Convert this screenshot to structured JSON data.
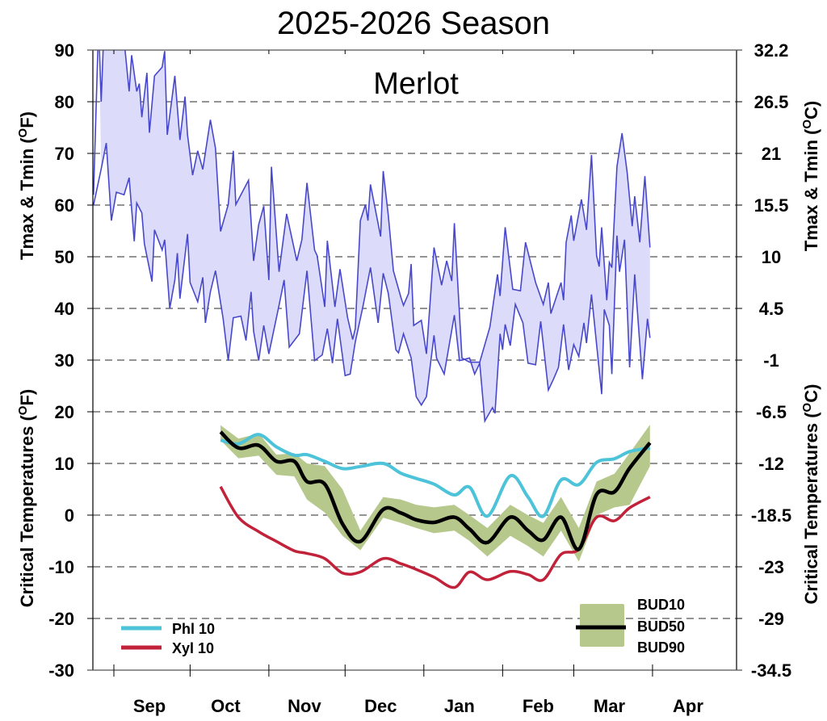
{
  "chart_data": {
    "type": "line",
    "title": "2025-2026 Season",
    "subtitle": "Merlot",
    "x_axis": {
      "type": "date",
      "range": [
        "2025-08-24",
        "2026-05-04"
      ],
      "tick_dates": [
        "2025-09-01",
        "2025-10-01",
        "2025-11-01",
        "2025-12-01",
        "2026-01-01",
        "2026-02-01",
        "2026-03-01",
        "2026-04-01"
      ],
      "labels": [
        {
          "text": "Sep",
          "date": "2025-09-15"
        },
        {
          "text": "Oct",
          "date": "2025-10-15"
        },
        {
          "text": "Nov",
          "date": "2025-11-15"
        },
        {
          "text": "Dec",
          "date": "2025-12-15"
        },
        {
          "text": "Jan",
          "date": "2026-01-15"
        },
        {
          "text": "Feb",
          "date": "2026-02-15"
        },
        {
          "text": "Mar",
          "date": "2026-03-15"
        },
        {
          "text": "Apr",
          "date": "2026-04-15"
        }
      ]
    },
    "y_axis_left": {
      "range": [
        -30,
        90
      ],
      "ticks": [
        90,
        80,
        70,
        60,
        50,
        40,
        30,
        20,
        10,
        0,
        -10,
        -20,
        -30
      ],
      "title_upper": {
        "prefix": "Tmax & Tmin (",
        "sup": "O",
        "suffix": "F)"
      },
      "title_lower": {
        "prefix": "Critical Temperatures (",
        "sup": "O",
        "suffix": "F)"
      }
    },
    "y_axis_right": {
      "ticks": [
        "32.2",
        "26.5",
        "21",
        "15.5",
        "10",
        "4.5",
        "-1",
        "-6.5",
        "-12",
        "-18.5",
        "-23",
        "-29",
        "-34.5"
      ],
      "title_upper": {
        "prefix": "Tmax & Tmin (",
        "sup": "O",
        "suffix": "C)"
      },
      "title_lower": {
        "prefix": "Critical Temperatures (",
        "sup": "O",
        "suffix": "C)"
      }
    },
    "grid": "horizontal dashed",
    "colors": {
      "temp_line": "#4848cc",
      "temp_fill": "#dcdcfa",
      "phl": "#4cc3d8",
      "xyl": "#c1223a",
      "bud_band": "#b6c88c",
      "bud50": "#000000",
      "grid": "#555555"
    },
    "temperature": {
      "tmax": [
        [
          "2025-08-24",
          62
        ],
        [
          "2025-08-26",
          95
        ],
        [
          "2025-08-27",
          80
        ],
        [
          "2025-08-28",
          93
        ],
        [
          "2025-09-02",
          95
        ],
        [
          "2025-09-05",
          92
        ],
        [
          "2025-09-07",
          82
        ],
        [
          "2025-09-08",
          89
        ],
        [
          "2025-09-10",
          82
        ],
        [
          "2025-09-11",
          83.5
        ],
        [
          "2025-09-12",
          77
        ],
        [
          "2025-09-14",
          85.6
        ],
        [
          "2025-09-15",
          74
        ],
        [
          "2025-09-17",
          85
        ],
        [
          "2025-09-20",
          86.7
        ],
        [
          "2025-09-21",
          89.8
        ],
        [
          "2025-09-22",
          73.6
        ],
        [
          "2025-09-25",
          85
        ],
        [
          "2025-09-27",
          72.6
        ],
        [
          "2025-09-29",
          81
        ],
        [
          "2025-09-30",
          73.6
        ],
        [
          "2025-10-02",
          65.8
        ],
        [
          "2025-10-04",
          70.5
        ],
        [
          "2025-10-06",
          66.9
        ],
        [
          "2025-10-09",
          76.5
        ],
        [
          "2025-10-11",
          71
        ],
        [
          "2025-10-13",
          54.9
        ],
        [
          "2025-10-16",
          60.1
        ],
        [
          "2025-10-18",
          70.5
        ],
        [
          "2025-10-19",
          60.1
        ],
        [
          "2025-10-21",
          62
        ],
        [
          "2025-10-24",
          64.8
        ],
        [
          "2025-10-26",
          49.2
        ],
        [
          "2025-10-28",
          56.2
        ],
        [
          "2025-10-30",
          59.8
        ],
        [
          "2025-11-01",
          45.5
        ],
        [
          "2025-11-02",
          67.4
        ],
        [
          "2025-11-05",
          47.1
        ],
        [
          "2025-11-08",
          58.3
        ],
        [
          "2025-11-12",
          49.2
        ],
        [
          "2025-11-14",
          53.3
        ],
        [
          "2025-11-16",
          64.3
        ],
        [
          "2025-11-19",
          51.3
        ],
        [
          "2025-11-20",
          50.2
        ],
        [
          "2025-11-23",
          40.3
        ],
        [
          "2025-11-24",
          53.1
        ],
        [
          "2025-11-27",
          40.3
        ],
        [
          "2025-11-29",
          47.6
        ],
        [
          "2025-12-02",
          38.2
        ],
        [
          "2025-12-04",
          34
        ],
        [
          "2025-12-05",
          36.1
        ],
        [
          "2025-12-07",
          57
        ],
        [
          "2025-12-09",
          60.1
        ],
        [
          "2025-12-10",
          57
        ],
        [
          "2025-12-11",
          64
        ],
        [
          "2025-12-15",
          53.9
        ],
        [
          "2025-12-16",
          66.6
        ],
        [
          "2025-12-18",
          58
        ],
        [
          "2025-12-20",
          47.3
        ],
        [
          "2025-12-23",
          42.1
        ],
        [
          "2025-12-24",
          40.6
        ],
        [
          "2025-12-26",
          42.9
        ],
        [
          "2025-12-27",
          48.6
        ],
        [
          "2025-12-28",
          36.7
        ],
        [
          "2025-12-31",
          37.7
        ],
        [
          "2026-01-02",
          31.2
        ],
        [
          "2026-01-05",
          51.8
        ],
        [
          "2026-01-08",
          44.5
        ],
        [
          "2026-01-10",
          49.2
        ],
        [
          "2026-01-12",
          45.3
        ],
        [
          "2026-01-13",
          56.5
        ],
        [
          "2026-01-16",
          30.4
        ],
        [
          "2026-01-19",
          29.6
        ],
        [
          "2026-01-23",
          29.6
        ],
        [
          "2026-01-27",
          36.4
        ],
        [
          "2026-01-30",
          46.6
        ],
        [
          "2026-01-31",
          42.4
        ],
        [
          "2026-02-02",
          55.7
        ],
        [
          "2026-02-05",
          43.7
        ],
        [
          "2026-02-08",
          43.4
        ],
        [
          "2026-02-10",
          52.8
        ],
        [
          "2026-02-14",
          45
        ],
        [
          "2026-02-17",
          40.8
        ],
        [
          "2026-02-19",
          45
        ],
        [
          "2026-02-20",
          39
        ],
        [
          "2026-02-24",
          45
        ],
        [
          "2026-02-25",
          41.6
        ],
        [
          "2026-02-26",
          52.8
        ],
        [
          "2026-02-28",
          58
        ],
        [
          "2026-03-01",
          53.1
        ],
        [
          "2026-03-04",
          61.1
        ],
        [
          "2026-03-06",
          55.2
        ],
        [
          "2026-03-08",
          69.7
        ],
        [
          "2026-03-10",
          50.2
        ],
        [
          "2026-03-11",
          48.1
        ],
        [
          "2026-03-12",
          55.7
        ],
        [
          "2026-03-14",
          41.6
        ],
        [
          "2026-03-15",
          48.9
        ],
        [
          "2026-03-16",
          47.9
        ],
        [
          "2026-03-18",
          67.4
        ],
        [
          "2026-03-20",
          73.9
        ],
        [
          "2026-03-22",
          66.4
        ],
        [
          "2026-03-24",
          55.9
        ],
        [
          "2026-03-25",
          61.7
        ],
        [
          "2026-03-27",
          52.8
        ],
        [
          "2026-03-29",
          65.6
        ],
        [
          "2026-03-31",
          51.8
        ]
      ],
      "tmin": [
        [
          "2025-08-24",
          60
        ],
        [
          "2025-08-27",
          67
        ],
        [
          "2025-08-29",
          72
        ],
        [
          "2025-08-31",
          57
        ],
        [
          "2025-09-02",
          62.5
        ],
        [
          "2025-09-05",
          62
        ],
        [
          "2025-09-07",
          65.3
        ],
        [
          "2025-09-09",
          53
        ],
        [
          "2025-09-10",
          60.4
        ],
        [
          "2025-09-12",
          58.5
        ],
        [
          "2025-09-13",
          52.5
        ],
        [
          "2025-09-16",
          45.2
        ],
        [
          "2025-09-17",
          55.2
        ],
        [
          "2025-09-20",
          51.3
        ],
        [
          "2025-09-21",
          53.3
        ],
        [
          "2025-09-23",
          40
        ],
        [
          "2025-09-25",
          45.5
        ],
        [
          "2025-09-26",
          50.7
        ],
        [
          "2025-09-27",
          41.9
        ],
        [
          "2025-09-30",
          54.4
        ],
        [
          "2025-10-01",
          45
        ],
        [
          "2025-10-04",
          41.3
        ],
        [
          "2025-10-06",
          46
        ],
        [
          "2025-10-07",
          37.2
        ],
        [
          "2025-10-09",
          43.2
        ],
        [
          "2025-10-11",
          47.3
        ],
        [
          "2025-10-14",
          38
        ],
        [
          "2025-10-16",
          29.9
        ],
        [
          "2025-10-18",
          38.2
        ],
        [
          "2025-10-21",
          38.5
        ],
        [
          "2025-10-23",
          33.8
        ],
        [
          "2025-10-25",
          43.2
        ],
        [
          "2025-10-26",
          35.6
        ],
        [
          "2025-10-28",
          29.9
        ],
        [
          "2025-10-30",
          36.7
        ],
        [
          "2025-11-01",
          31.2
        ],
        [
          "2025-11-05",
          40.6
        ],
        [
          "2025-11-07",
          45.5
        ],
        [
          "2025-11-09",
          32.5
        ],
        [
          "2025-11-13",
          35.1
        ],
        [
          "2025-11-16",
          47.3
        ],
        [
          "2025-11-19",
          29.9
        ],
        [
          "2025-11-22",
          31
        ],
        [
          "2025-11-24",
          36.1
        ],
        [
          "2025-11-26",
          29.4
        ],
        [
          "2025-11-28",
          38
        ],
        [
          "2025-12-01",
          27
        ],
        [
          "2025-12-03",
          27.3
        ],
        [
          "2025-12-05",
          33.5
        ],
        [
          "2025-12-08",
          40.3
        ],
        [
          "2025-12-11",
          47.9
        ],
        [
          "2025-12-14",
          37.2
        ],
        [
          "2025-12-16",
          46.8
        ],
        [
          "2025-12-18",
          42.9
        ],
        [
          "2025-12-21",
          32
        ],
        [
          "2025-12-22",
          31.4
        ],
        [
          "2025-12-24",
          35.1
        ],
        [
          "2025-12-27",
          30.4
        ],
        [
          "2025-12-29",
          22.9
        ],
        [
          "2025-12-31",
          21.3
        ],
        [
          "2026-01-02",
          22.9
        ],
        [
          "2026-01-05",
          34.8
        ],
        [
          "2026-01-06",
          30.4
        ],
        [
          "2026-01-09",
          27.3
        ],
        [
          "2026-01-11",
          33
        ],
        [
          "2026-01-13",
          38.7
        ],
        [
          "2026-01-15",
          29.9
        ],
        [
          "2026-01-19",
          30.4
        ],
        [
          "2026-01-21",
          27.3
        ],
        [
          "2026-01-23",
          29.4
        ],
        [
          "2026-01-25",
          18.2
        ],
        [
          "2026-01-28",
          20.8
        ],
        [
          "2026-01-29",
          19.7
        ],
        [
          "2026-01-31",
          35.1
        ],
        [
          "2026-02-01",
          32
        ],
        [
          "2026-02-02",
          36.9
        ],
        [
          "2026-02-04",
          32.8
        ],
        [
          "2026-02-06",
          40.8
        ],
        [
          "2026-02-09",
          37.2
        ],
        [
          "2026-02-11",
          29.4
        ],
        [
          "2026-02-14",
          29.1
        ],
        [
          "2026-02-16",
          37.5
        ],
        [
          "2026-02-19",
          24.2
        ],
        [
          "2026-02-21",
          26.3
        ],
        [
          "2026-02-23",
          28.6
        ],
        [
          "2026-02-25",
          36.9
        ],
        [
          "2026-02-27",
          28.1
        ],
        [
          "2026-03-01",
          33
        ],
        [
          "2026-03-03",
          30.7
        ],
        [
          "2026-03-05",
          37.2
        ],
        [
          "2026-03-06",
          33.3
        ],
        [
          "2026-03-08",
          42.7
        ],
        [
          "2026-03-12",
          23.4
        ],
        [
          "2026-03-13",
          39.8
        ],
        [
          "2026-03-15",
          36.7
        ],
        [
          "2026-03-16",
          27.3
        ],
        [
          "2026-03-18",
          54.1
        ],
        [
          "2026-03-19",
          47.1
        ],
        [
          "2026-03-21",
          53.3
        ],
        [
          "2026-03-23",
          28.6
        ],
        [
          "2026-03-25",
          46.6
        ],
        [
          "2026-03-28",
          26.3
        ],
        [
          "2026-03-30",
          38
        ],
        [
          "2026-03-31",
          34.3
        ]
      ]
    },
    "critical": {
      "dates": [
        "2025-10-13",
        "2025-10-20",
        "2025-10-28",
        "2025-11-04",
        "2025-11-11",
        "2025-11-16",
        "2025-11-23",
        "2025-11-30",
        "2025-12-07",
        "2025-12-16",
        "2025-12-23",
        "2025-12-29",
        "2026-01-05",
        "2026-01-13",
        "2026-01-19",
        "2026-01-26",
        "2026-02-04",
        "2026-02-11",
        "2026-02-17",
        "2026-02-24",
        "2026-03-03",
        "2026-03-10",
        "2026-03-17",
        "2026-03-23",
        "2026-03-31"
      ],
      "series": [
        {
          "name": "Phl 10",
          "values": [
            14.5,
            13.8,
            15.6,
            13.2,
            11.6,
            11.7,
            10.4,
            9.0,
            9.4,
            10.0,
            8.1,
            7.1,
            6.0,
            3.9,
            5.4,
            -0.2,
            7.6,
            3.5,
            -0.2,
            6.8,
            5.9,
            10.2,
            10.9,
            12.3,
            13.0
          ]
        },
        {
          "name": "Xyl 10",
          "values": [
            5.5,
            -0.4,
            -3.2,
            -5.1,
            -6.9,
            -7.4,
            -8.4,
            -11.2,
            -11.0,
            -8.4,
            -9.4,
            -10.5,
            -12.0,
            -14.0,
            -11.0,
            -12.5,
            -10.9,
            -11.5,
            -12.5,
            -7.6,
            -6.6,
            -0.4,
            -1.1,
            1.4,
            3.5
          ]
        },
        {
          "name": "BUD10",
          "values": [
            17.4,
            14.8,
            15.8,
            11.7,
            12.0,
            10.0,
            9.5,
            5.0,
            -3.0,
            3.5,
            3.0,
            2.0,
            1.5,
            2.0,
            0.0,
            -2.5,
            2.0,
            0.0,
            -1.5,
            3.5,
            -2.5,
            6.5,
            8.0,
            12.0,
            17.5
          ]
        },
        {
          "name": "BUD50",
          "values": [
            16.1,
            13.0,
            13.5,
            10.4,
            10.4,
            6.5,
            6.0,
            -1.7,
            -5.1,
            1.1,
            0.4,
            -0.9,
            -1.4,
            -0.4,
            -2.7,
            -5.3,
            -0.4,
            -3.0,
            -4.8,
            -0.4,
            -6.6,
            4.0,
            4.5,
            9.1,
            14.0
          ]
        },
        {
          "name": "BUD90",
          "values": [
            14.5,
            11.0,
            11.5,
            7.8,
            7.5,
            3.0,
            0.5,
            -4.0,
            -6.8,
            -0.5,
            -1.5,
            -2.5,
            -3.5,
            -3.0,
            -5.0,
            -8.0,
            -4.0,
            -6.0,
            -8.0,
            -3.0,
            -9.0,
            0.0,
            1.5,
            2.0,
            9.5
          ]
        }
      ]
    },
    "legend": {
      "placement": "bottom-left and bottom-right",
      "phl": "Phl 10",
      "xyl": "Xyl 10",
      "bud10": "BUD10",
      "bud50": "BUD50",
      "bud90": "BUD90"
    }
  }
}
